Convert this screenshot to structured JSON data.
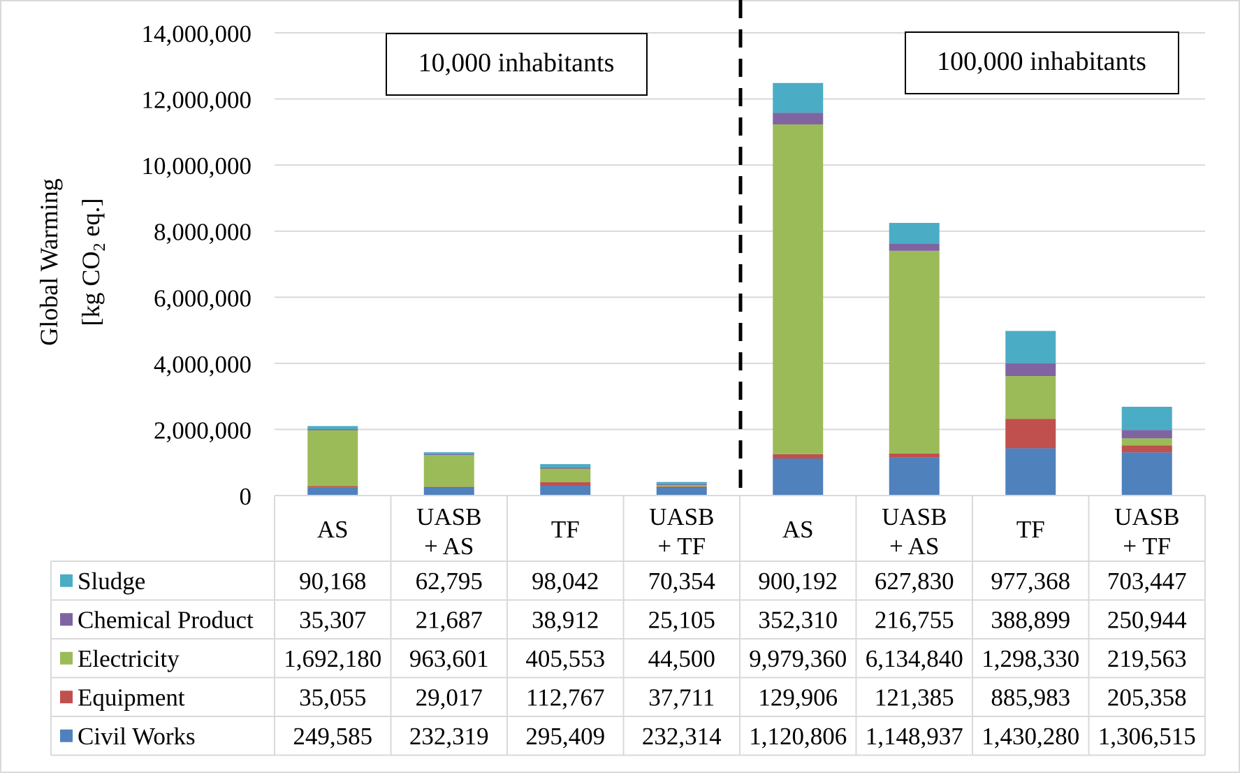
{
  "chart_data": {
    "type": "bar",
    "stacked": true,
    "ylabel_line1": "Global Warming",
    "ylabel_line2_pre": "[kg CO",
    "ylabel_line2_sub": "2",
    "ylabel_line2_post": " eq.]",
    "ylim": [
      0,
      14000000
    ],
    "ytick_labels": [
      "0",
      "2,000,000",
      "4,000,000",
      "6,000,000",
      "8,000,000",
      "10,000,000",
      "12,000,000",
      "14,000,000"
    ],
    "ytick_values": [
      0,
      2000000,
      4000000,
      6000000,
      8000000,
      10000000,
      12000000,
      14000000
    ],
    "grid": true,
    "groups": [
      "10,000 inhabitants",
      "100,000 inhabitants"
    ],
    "categories": [
      [
        "AS"
      ],
      [
        "UASB",
        "+ AS"
      ],
      [
        "TF"
      ],
      [
        "UASB",
        "+ TF"
      ],
      [
        "AS"
      ],
      [
        "UASB",
        "+ AS"
      ],
      [
        "TF"
      ],
      [
        "UASB",
        "+ TF"
      ]
    ],
    "series": [
      {
        "name": "Civil Works",
        "color": "#4F81BD",
        "values": [
          249585,
          232319,
          295409,
          232314,
          1120806,
          1148937,
          1430280,
          1306515
        ],
        "labels": [
          "249,585",
          "232,319",
          "295,409",
          "232,314",
          "1,120,806",
          "1,148,937",
          "1,430,280",
          "1,306,515"
        ]
      },
      {
        "name": "Equipment",
        "color": "#C0504D",
        "values": [
          35055,
          29017,
          112767,
          37711,
          129906,
          121385,
          885983,
          205358
        ],
        "labels": [
          "35,055",
          "29,017",
          "112,767",
          "37,711",
          "129,906",
          "121,385",
          "885,983",
          "205,358"
        ]
      },
      {
        "name": "Electricity",
        "color": "#9BBB59",
        "values": [
          1692180,
          963601,
          405553,
          44500,
          9979360,
          6134840,
          1298330,
          219563
        ],
        "labels": [
          "1,692,180",
          "963,601",
          "405,553",
          "44,500",
          "9,979,360",
          "6,134,840",
          "1,298,330",
          "219,563"
        ]
      },
      {
        "name": "Chemical Product",
        "color": "#8064A2",
        "values": [
          35307,
          21687,
          38912,
          25105,
          352310,
          216755,
          388899,
          250944
        ],
        "labels": [
          "35,307",
          "21,687",
          "38,912",
          "25,105",
          "352,310",
          "216,755",
          "388,899",
          "250,944"
        ]
      },
      {
        "name": "Sludge",
        "color": "#4BACC6",
        "values": [
          90168,
          62795,
          98042,
          70354,
          900192,
          627830,
          977368,
          703447
        ],
        "labels": [
          "90,168",
          "62,795",
          "98,042",
          "70,354",
          "900,192",
          "627,830",
          "977,368",
          "703,447"
        ]
      }
    ],
    "table_row_order": [
      "Sludge",
      "Chemical Product",
      "Electricity",
      "Equipment",
      "Civil Works"
    ]
  }
}
